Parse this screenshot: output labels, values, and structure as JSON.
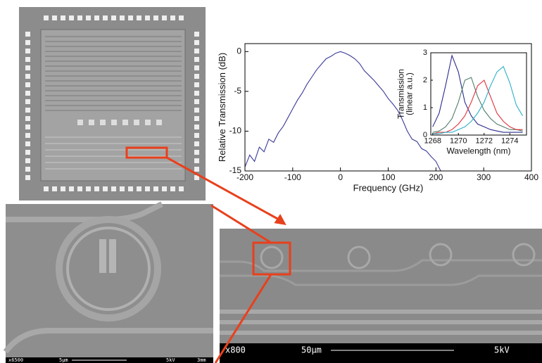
{
  "chart_data": [
    {
      "type": "line",
      "xlabel": "Frequency (GHz)",
      "ylabel": "Relative Transmission (dB)",
      "xlim": [
        -200,
        400
      ],
      "ylim": [
        -15,
        1
      ],
      "xticks": [
        -200,
        -100,
        0,
        100,
        200,
        300,
        400
      ],
      "yticks": [
        -15,
        -10,
        -5,
        0
      ],
      "x": [
        -200,
        -190,
        -180,
        -170,
        -160,
        -150,
        -140,
        -130,
        -120,
        -110,
        -100,
        -90,
        -80,
        -70,
        -60,
        -50,
        -40,
        -30,
        -20,
        -10,
        0,
        10,
        20,
        30,
        40,
        50,
        60,
        70,
        80,
        90,
        100,
        110,
        120,
        130,
        140,
        150,
        160,
        170,
        180,
        190,
        200,
        210
      ],
      "series": [
        {
          "color": "#3a3a9a",
          "values": [
            -14.5,
            -13,
            -13.8,
            -12,
            -12.6,
            -11,
            -11.4,
            -10.2,
            -9.4,
            -8.3,
            -7.2,
            -6.1,
            -5.2,
            -4.1,
            -3.2,
            -2.3,
            -1.6,
            -0.9,
            -0.6,
            -0.2,
            0,
            -0.2,
            -0.5,
            -0.9,
            -1.5,
            -2.4,
            -3,
            -3.6,
            -4.3,
            -5,
            -5.9,
            -6.6,
            -7.4,
            -8.6,
            -10,
            -11,
            -11.3,
            -12.2,
            -12.5,
            -13.2,
            -13.8,
            -15
          ]
        }
      ]
    },
    {
      "type": "line",
      "xlabel": "Wavelength (nm)",
      "ylabel": [
        "Transmission",
        "(linear a.u.)"
      ],
      "xlim": [
        1267.85,
        1275.3
      ],
      "ylim": [
        0,
        3
      ],
      "xticks": [
        1268,
        1270,
        1272,
        1274
      ],
      "yticks": [
        0,
        1,
        2,
        3
      ],
      "x": [
        1268,
        1268.5,
        1269,
        1269.5,
        1270,
        1270.5,
        1271,
        1271.5,
        1272,
        1272.5,
        1273,
        1273.5,
        1274,
        1274.5,
        1275
      ],
      "series": [
        {
          "color": "#2b2b8f",
          "values": [
            0.3,
            0.8,
            1.8,
            2.9,
            2.3,
            1.2,
            0.7,
            0.4,
            0.3,
            0.2,
            0.15,
            0.1,
            0.1,
            0.1,
            0.1
          ]
        },
        {
          "color": "#4f7f6a",
          "values": [
            0.1,
            0.15,
            0.3,
            0.6,
            1.2,
            2.0,
            2.1,
            1.4,
            0.9,
            0.6,
            0.4,
            0.3,
            0.2,
            0.2,
            0.15
          ]
        },
        {
          "color": "#e0303a",
          "values": [
            0.05,
            0.1,
            0.1,
            0.2,
            0.4,
            0.7,
            1.2,
            1.8,
            2.0,
            1.4,
            0.8,
            0.5,
            0.3,
            0.2,
            0.2
          ]
        },
        {
          "color": "#2ab0c8",
          "values": [
            0.05,
            0.05,
            0.1,
            0.1,
            0.2,
            0.3,
            0.5,
            0.8,
            1.2,
            1.8,
            2.3,
            2.5,
            1.9,
            1.1,
            0.7
          ]
        }
      ]
    }
  ],
  "sem_left": {
    "magnification": "x6500",
    "scale": "5μm",
    "voltage": "5kV",
    "distance": "3mm"
  },
  "sem_right": {
    "magnification": "x800",
    "scale": "50μm",
    "voltage": "5kV"
  }
}
